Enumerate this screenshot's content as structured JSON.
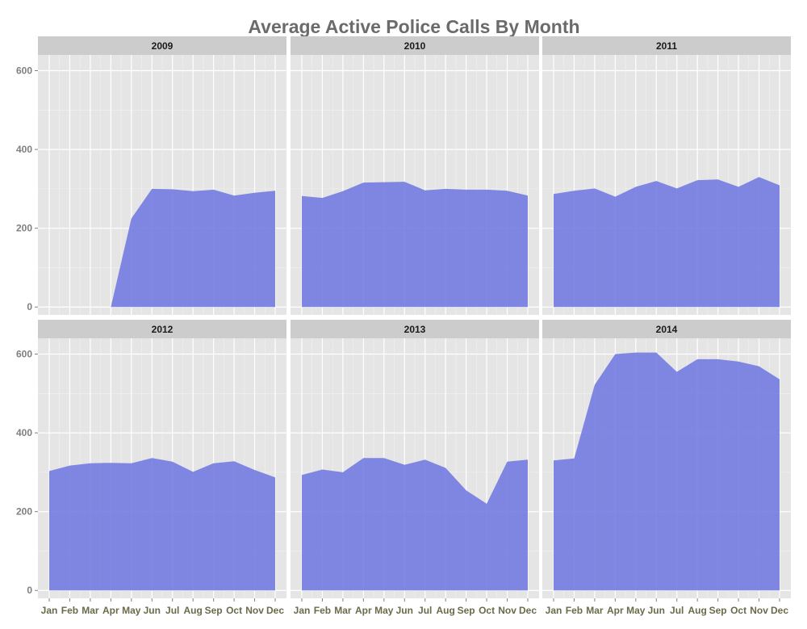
{
  "chart_data": {
    "type": "area",
    "title": "Average Active Police Calls By Month",
    "xlabel": "",
    "ylabel": "",
    "categories": [
      "Jan",
      "Feb",
      "Mar",
      "Apr",
      "May",
      "Jun",
      "Jul",
      "Aug",
      "Sep",
      "Oct",
      "Nov",
      "Dec"
    ],
    "ylim": [
      -20,
      640
    ],
    "yticks": [
      0,
      200,
      400,
      600
    ],
    "grid": true,
    "fill_color": "#6f79e0",
    "panel_background": "#e5e5e5",
    "strip_background": "#cccccc",
    "facets": [
      {
        "label": "2009",
        "values": [
          null,
          null,
          null,
          0,
          225,
          300,
          299,
          294,
          298,
          283,
          290,
          295
        ]
      },
      {
        "label": "2010",
        "values": [
          282,
          277,
          294,
          316,
          317,
          318,
          296,
          300,
          298,
          298,
          295,
          283
        ]
      },
      {
        "label": "2011",
        "values": [
          287,
          295,
          301,
          280,
          305,
          320,
          301,
          322,
          324,
          305,
          330,
          309
        ]
      },
      {
        "label": "2012",
        "values": [
          303,
          317,
          323,
          324,
          323,
          336,
          327,
          301,
          323,
          328,
          306,
          287
        ]
      },
      {
        "label": "2013",
        "values": [
          293,
          307,
          300,
          336,
          336,
          319,
          332,
          311,
          254,
          220,
          327,
          332
        ]
      },
      {
        "label": "2014",
        "values": [
          330,
          335,
          522,
          600,
          604,
          604,
          555,
          587,
          587,
          581,
          569,
          536
        ]
      }
    ]
  }
}
